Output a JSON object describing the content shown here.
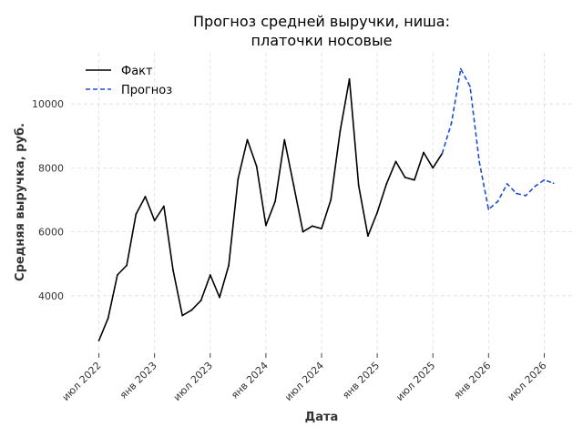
{
  "chart_data": {
    "type": "line",
    "title": [
      "Прогноз средней выручки, ниша:",
      "платочки носовые"
    ],
    "xlabel": "Дата",
    "ylabel": "Средняя выручка, руб.",
    "x_ticks": [
      {
        "date": "2022-07",
        "label": "июл 2022"
      },
      {
        "date": "2023-01",
        "label": "янв 2023"
      },
      {
        "date": "2023-07",
        "label": "июл 2023"
      },
      {
        "date": "2024-01",
        "label": "янв 2024"
      },
      {
        "date": "2024-07",
        "label": "июл 2024"
      },
      {
        "date": "2025-01",
        "label": "янв 2025"
      },
      {
        "date": "2025-07",
        "label": "июл 2025"
      },
      {
        "date": "2026-01",
        "label": "янв 2026"
      },
      {
        "date": "2026-07",
        "label": "июл 2026"
      }
    ],
    "y_ticks": [
      4000,
      6000,
      8000,
      10000
    ],
    "xlim": [
      "2022-04",
      "2026-10"
    ],
    "ylim": [
      2200,
      11600
    ],
    "grid": true,
    "legend_position": "top-left",
    "series": [
      {
        "name": "Факт",
        "color": "#000000",
        "style": "solid",
        "points": [
          {
            "x": "2022-07",
            "y": 2600
          },
          {
            "x": "2022-08",
            "y": 3300
          },
          {
            "x": "2022-09",
            "y": 4650
          },
          {
            "x": "2022-10",
            "y": 4950
          },
          {
            "x": "2022-11",
            "y": 6550
          },
          {
            "x": "2022-12",
            "y": 7100
          },
          {
            "x": "2023-01",
            "y": 6350
          },
          {
            "x": "2023-02",
            "y": 6800
          },
          {
            "x": "2023-03",
            "y": 4800
          },
          {
            "x": "2023-04",
            "y": 3380
          },
          {
            "x": "2023-05",
            "y": 3550
          },
          {
            "x": "2023-06",
            "y": 3850
          },
          {
            "x": "2023-07",
            "y": 4650
          },
          {
            "x": "2023-08",
            "y": 3950
          },
          {
            "x": "2023-09",
            "y": 4950
          },
          {
            "x": "2023-10",
            "y": 7650
          },
          {
            "x": "2023-11",
            "y": 8880
          },
          {
            "x": "2023-12",
            "y": 8050
          },
          {
            "x": "2024-01",
            "y": 6200
          },
          {
            "x": "2024-02",
            "y": 6950
          },
          {
            "x": "2024-03",
            "y": 8880
          },
          {
            "x": "2024-04",
            "y": 7450
          },
          {
            "x": "2024-05",
            "y": 6000
          },
          {
            "x": "2024-06",
            "y": 6180
          },
          {
            "x": "2024-07",
            "y": 6100
          },
          {
            "x": "2024-08",
            "y": 7000
          },
          {
            "x": "2024-09",
            "y": 9150
          },
          {
            "x": "2024-10",
            "y": 10780
          },
          {
            "x": "2024-11",
            "y": 7450
          },
          {
            "x": "2024-12",
            "y": 5870
          },
          {
            "x": "2025-01",
            "y": 6600
          },
          {
            "x": "2025-02",
            "y": 7500
          },
          {
            "x": "2025-03",
            "y": 8200
          },
          {
            "x": "2025-04",
            "y": 7700
          },
          {
            "x": "2025-05",
            "y": 7620
          },
          {
            "x": "2025-06",
            "y": 8480
          },
          {
            "x": "2025-07",
            "y": 8000
          },
          {
            "x": "2025-08",
            "y": 8450
          }
        ]
      },
      {
        "name": "Прогноз",
        "color": "#1f4fd1",
        "style": "dashed",
        "points": [
          {
            "x": "2025-08",
            "y": 8450
          },
          {
            "x": "2025-09",
            "y": 9400
          },
          {
            "x": "2025-10",
            "y": 11100
          },
          {
            "x": "2025-11",
            "y": 10550
          },
          {
            "x": "2025-12",
            "y": 8200
          },
          {
            "x": "2026-01",
            "y": 6700
          },
          {
            "x": "2026-02",
            "y": 6950
          },
          {
            "x": "2026-03",
            "y": 7500
          },
          {
            "x": "2026-04",
            "y": 7200
          },
          {
            "x": "2026-05",
            "y": 7130
          },
          {
            "x": "2026-06",
            "y": 7420
          },
          {
            "x": "2026-07",
            "y": 7620
          },
          {
            "x": "2026-08",
            "y": 7520
          }
        ]
      }
    ]
  }
}
